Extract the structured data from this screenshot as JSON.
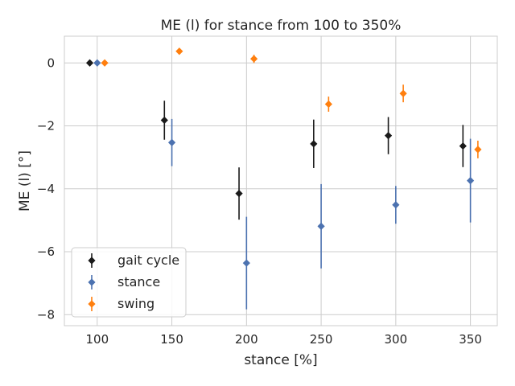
{
  "chart_data": {
    "type": "scatter",
    "title": "ME (l) for stance from 100 to 350%",
    "xlabel": "stance [%]",
    "ylabel": "ME (l) [°]",
    "xlim": [
      78,
      368
    ],
    "ylim": [
      -8.35,
      0.85
    ],
    "xticks": [
      100,
      150,
      200,
      250,
      300,
      350
    ],
    "yticks": [
      0,
      -2,
      -4,
      -6,
      -8
    ],
    "xtick_labels": [
      "100",
      "150",
      "200",
      "250",
      "300",
      "350"
    ],
    "ytick_labels": [
      "0",
      "−2",
      "−4",
      "−6",
      "−8"
    ],
    "grid": true,
    "legend_position": "lower-left",
    "series": [
      {
        "name": "gait cycle",
        "color": "#1a1a1a",
        "points": [
          {
            "x": 95,
            "y": 0.0,
            "err": 0.0
          },
          {
            "x": 145,
            "y": -1.82,
            "err": 0.62
          },
          {
            "x": 195,
            "y": -4.15,
            "err": 0.83
          },
          {
            "x": 245,
            "y": -2.57,
            "err": 0.77
          },
          {
            "x": 295,
            "y": -2.31,
            "err": 0.59
          },
          {
            "x": 345,
            "y": -2.64,
            "err": 0.67
          }
        ]
      },
      {
        "name": "stance",
        "color": "#4c72b0",
        "points": [
          {
            "x": 100,
            "y": 0.0,
            "err": 0.0
          },
          {
            "x": 150,
            "y": -2.53,
            "err": 0.75
          },
          {
            "x": 200,
            "y": -6.36,
            "err": 1.47
          },
          {
            "x": 250,
            "y": -5.19,
            "err": 1.34
          },
          {
            "x": 300,
            "y": -4.51,
            "err": 0.6
          },
          {
            "x": 350,
            "y": -3.74,
            "err": 1.33
          }
        ]
      },
      {
        "name": "swing",
        "color": "#ff7f0e",
        "points": [
          {
            "x": 105,
            "y": 0.0,
            "err": 0.0
          },
          {
            "x": 155,
            "y": 0.37,
            "err": 0.06
          },
          {
            "x": 205,
            "y": 0.13,
            "err": 0.13
          },
          {
            "x": 255,
            "y": -1.31,
            "err": 0.24
          },
          {
            "x": 305,
            "y": -0.97,
            "err": 0.28
          },
          {
            "x": 355,
            "y": -2.75,
            "err": 0.28
          }
        ]
      }
    ]
  }
}
